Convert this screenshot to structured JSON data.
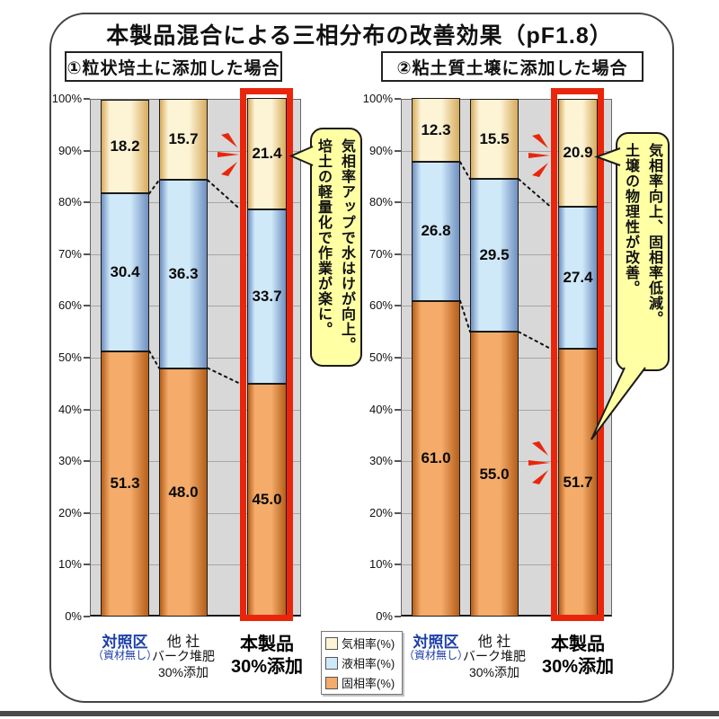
{
  "title": "本製品混合による三相分布の改善効果（pF1.8）",
  "panels": [
    {
      "header": "①粒状培土に添加した場合",
      "categories": [
        {
          "lines": [
            "対照区",
            "（資材無し）"
          ],
          "emphasis": "control"
        },
        {
          "lines": [
            "他 社",
            "バーク堆肥",
            "30%添加"
          ],
          "emphasis": "normal"
        },
        {
          "lines": [
            "本製品",
            "30%添加"
          ],
          "emphasis": "product"
        }
      ],
      "bubble_text": "気相率アップで水はけが向上。\n培土の軽量化で作業が楽に。"
    },
    {
      "header": "②粘土質土壌に添加した場合",
      "categories": [
        {
          "lines": [
            "対照区",
            "（資材無し）"
          ],
          "emphasis": "control"
        },
        {
          "lines": [
            "他 社",
            "バーク堆肥",
            "30%添加"
          ],
          "emphasis": "normal"
        },
        {
          "lines": [
            "本製品",
            "30%添加"
          ],
          "emphasis": "product"
        }
      ],
      "bubble_text": "気相率向上、固相率低減。\n土壌の物理性が改善。"
    }
  ],
  "y_ticks": [
    "0%",
    "10%",
    "20%",
    "30%",
    "40%",
    "50%",
    "60%",
    "70%",
    "80%",
    "90%",
    "100%"
  ],
  "legend": {
    "items": [
      {
        "label": "気相率(%)",
        "color_key": "gas"
      },
      {
        "label": "液相率(%)",
        "color_key": "liquid"
      },
      {
        "label": "固相率(%)",
        "color_key": "solid"
      }
    ]
  },
  "colors": {
    "gas_center": "#fdf4d6",
    "gas_edge": "#d7ab5e",
    "liquid_center": "#cfe9f9",
    "liquid_edge": "#6f8fc0",
    "solid_center": "#f5ab6a",
    "solid_edge": "#b55f1a",
    "highlight_red": "#e9260b",
    "bubble_yellow": "#ffffa3",
    "control_label_blue": "#1c3ea8",
    "plot_background": "#d8d8d8"
  },
  "chart_data": [
    {
      "type": "bar",
      "stacked": true,
      "title": "①粒状培土に添加した場合",
      "categories": [
        "対照区（資材無し）",
        "他社 バーク堆肥 30%添加",
        "本製品 30%添加"
      ],
      "series": [
        {
          "name": "固相率(%)",
          "values": [
            51.3,
            48.0,
            45.0
          ]
        },
        {
          "name": "液相率(%)",
          "values": [
            30.4,
            36.3,
            33.7
          ]
        },
        {
          "name": "気相率(%)",
          "values": [
            18.2,
            15.7,
            21.4
          ]
        }
      ],
      "ylim": [
        0,
        100
      ],
      "y_tick_step": 10,
      "grid": true,
      "highlight_category": "本製品 30%添加",
      "annotation": "気相率アップで水はけが向上。培土の軽量化で作業が楽に。"
    },
    {
      "type": "bar",
      "stacked": true,
      "title": "②粘土質土壌に添加した場合",
      "categories": [
        "対照区（資材無し）",
        "他社 バーク堆肥 30%添加",
        "本製品 30%添加"
      ],
      "series": [
        {
          "name": "固相率(%)",
          "values": [
            61.0,
            55.0,
            51.7
          ]
        },
        {
          "name": "液相率(%)",
          "values": [
            26.8,
            29.5,
            27.4
          ]
        },
        {
          "name": "気相率(%)",
          "values": [
            12.3,
            15.5,
            20.9
          ]
        }
      ],
      "ylim": [
        0,
        100
      ],
      "y_tick_step": 10,
      "grid": true,
      "highlight_category": "本製品 30%添加",
      "annotation": "気相率向上、固相率低減。土壌の物理性が改善。"
    }
  ]
}
